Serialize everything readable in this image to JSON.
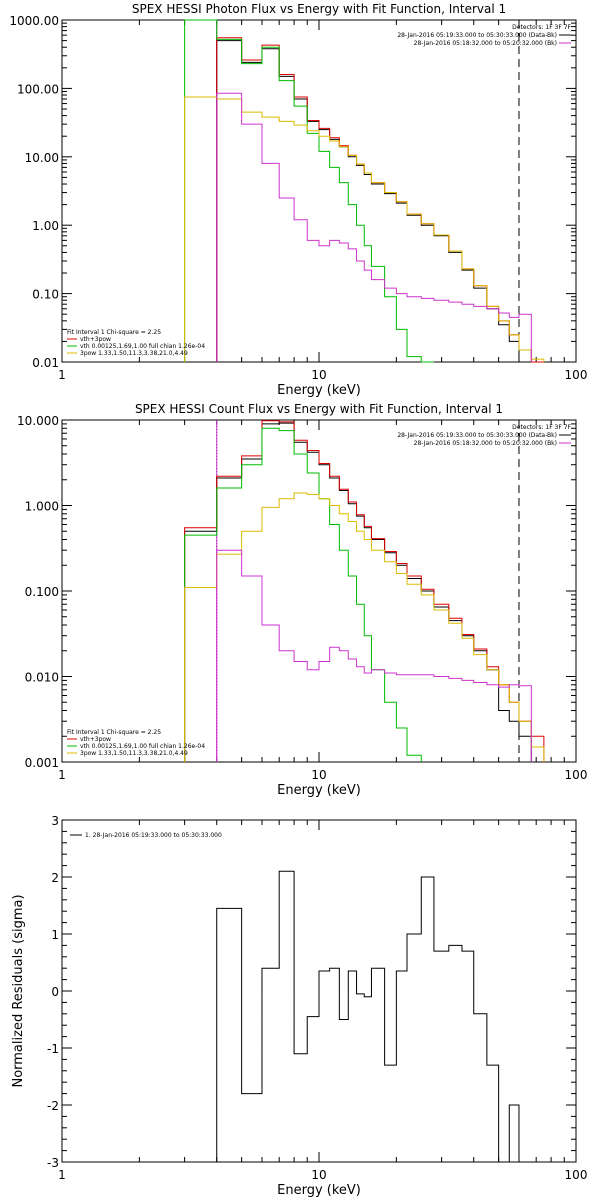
{
  "chart_data": [
    {
      "type": "line",
      "title": "SPEX HESSI Photon Flux vs Energy with Fit Function, Interval 1",
      "xlabel": "Energy (keV)",
      "ylabel": "",
      "xscale": "log",
      "yscale": "log",
      "xlim": [
        1,
        100
      ],
      "ylim": [
        0.01,
        1000
      ],
      "xticks": [
        "1",
        "10",
        "100"
      ],
      "yticks": [
        "0.01",
        "0.10",
        "1.00",
        "10.00",
        "100.00",
        "1000.00"
      ],
      "legend_topright": {
        "title": "Detectors: 1F 3F 7F",
        "entries": [
          {
            "text": "28-Jan-2016 05:19:33.000 to 05:30:33.000 (Data-Bk)",
            "color": "#000000"
          },
          {
            "text": "28-Jan-2016 05:18:32.000 to 05:20:32.000 (Bk)",
            "color": "#cc33cc"
          }
        ]
      },
      "legend_bottomleft": {
        "header": "Fit Interval 1   Chi-square = 2.25",
        "entries": [
          {
            "text": "vth+3pow",
            "color": "#dd0000"
          },
          {
            "text": "vth 0.00125,1.69,1.00  full chian 1.26e-04",
            "color": "#00bb00"
          },
          {
            "text": "3pow 1.33,1.50,11.3,3.38,21.0,4.49",
            "color": "#ddbb00"
          }
        ]
      },
      "vlines": [
        {
          "x": 4.0,
          "style": "dotted",
          "color": "#000000"
        },
        {
          "x": 4.0,
          "style": "solid",
          "color": "#cc33cc"
        },
        {
          "x": 60.0,
          "style": "dashed",
          "color": "#000000"
        }
      ],
      "bin_edges": [
        3.0,
        4.0,
        5.0,
        6.0,
        7.0,
        8.0,
        9.0,
        10.0,
        11.0,
        12.0,
        13.0,
        14.0,
        15.0,
        16.0,
        18.0,
        20.0,
        22.0,
        25.0,
        28.0,
        32.0,
        36.0,
        40.0,
        45.0,
        50.0,
        55.0,
        60.0,
        67.0,
        75.0
      ],
      "series": [
        {
          "name": "data",
          "color": "#000000",
          "values": [
            null,
            500,
            240,
            380,
            150,
            70,
            33,
            25,
            18,
            14,
            10,
            7.5,
            5.5,
            4,
            2.9,
            2.1,
            1.4,
            1,
            0.7,
            0.4,
            0.22,
            0.12,
            0.06,
            0.035,
            0.02,
            null,
            null
          ]
        },
        {
          "name": "vth+3pow",
          "color": "#dd0000",
          "values": [
            null,
            550,
            260,
            430,
            160,
            75,
            34,
            26,
            19,
            14.5,
            10.5,
            7.8,
            5.8,
            4.2,
            3,
            2.2,
            1.45,
            1.05,
            0.72,
            0.42,
            0.23,
            0.13,
            0.065,
            0.04,
            0.025,
            0.015,
            0.01
          ]
        },
        {
          "name": "vth",
          "color": "#00bb00",
          "values": [
            5000,
            520,
            230,
            400,
            130,
            55,
            22,
            12,
            7,
            4.2,
            2,
            1,
            0.5,
            0.25,
            0.09,
            0.03,
            0.012,
            0.004,
            null,
            null,
            null,
            null,
            null,
            null,
            null,
            null,
            null
          ]
        },
        {
          "name": "3pow",
          "color": "#ddbb00",
          "values": [
            75,
            70,
            45,
            38,
            33,
            29,
            24,
            20,
            17,
            14,
            10.5,
            7.8,
            5.8,
            4.2,
            3,
            2.2,
            1.45,
            1.05,
            0.72,
            0.42,
            0.23,
            0.13,
            0.065,
            0.04,
            0.025,
            0.015,
            0.011
          ]
        },
        {
          "name": "bkg",
          "color": "#cc33cc",
          "values": [
            null,
            85,
            30,
            8,
            2.5,
            1.2,
            0.6,
            0.5,
            0.6,
            0.55,
            0.45,
            0.3,
            0.22,
            0.16,
            0.12,
            0.1,
            0.09,
            0.085,
            0.08,
            0.075,
            0.07,
            0.065,
            0.06,
            0.052,
            0.045,
            0.05,
            null
          ]
        }
      ]
    },
    {
      "type": "line",
      "title": "SPEX HESSI Count Flux vs Energy with Fit Function, Interval 1",
      "xlabel": "Energy (keV)",
      "ylabel": "",
      "xscale": "log",
      "yscale": "log",
      "xlim": [
        1,
        100
      ],
      "ylim": [
        0.001,
        10
      ],
      "xticks": [
        "1",
        "10",
        "100"
      ],
      "yticks": [
        "0.001",
        "0.010",
        "0.100",
        "1.000",
        "10.000"
      ],
      "legend_topright": {
        "title": "Detectors: 1F 3F 7F",
        "entries": [
          {
            "text": "28-Jan-2016 05:19:33.000 to 05:30:33.000 (Data-Bk)",
            "color": "#000000"
          },
          {
            "text": "28-Jan-2016 05:18:32.000 to 05:20:32.000 (Bk)",
            "color": "#cc33cc"
          }
        ]
      },
      "legend_bottomleft": {
        "header": "Fit Interval 1   Chi-square = 2.25",
        "entries": [
          {
            "text": "vth+3pow",
            "color": "#dd0000"
          },
          {
            "text": "vth 0.00125,1.69,1.00  full chian 1.26e-04",
            "color": "#00bb00"
          },
          {
            "text": "3pow 1.33,1.50,11.3,3.38,21.0,4.49",
            "color": "#ddbb00"
          }
        ]
      },
      "vlines": [
        {
          "x": 4.0,
          "style": "dotted",
          "color": "#000000"
        },
        {
          "x": 4.0,
          "style": "solid",
          "color": "#cc33cc"
        },
        {
          "x": 60.0,
          "style": "dashed",
          "color": "#000000"
        }
      ],
      "bin_edges": [
        3.0,
        4.0,
        5.0,
        6.0,
        7.0,
        8.0,
        9.0,
        10.0,
        11.0,
        12.0,
        13.0,
        14.0,
        15.0,
        16.0,
        18.0,
        20.0,
        22.0,
        25.0,
        28.0,
        32.0,
        36.0,
        40.0,
        45.0,
        50.0,
        55.0,
        60.0,
        67.0,
        75.0
      ],
      "series": [
        {
          "name": "data",
          "color": "#000000",
          "values": [
            0.5,
            2.1,
            3.5,
            9,
            9.2,
            5.5,
            4.2,
            3,
            2.1,
            1.5,
            1.05,
            0.75,
            0.55,
            0.4,
            0.28,
            0.2,
            0.14,
            0.1,
            0.065,
            0.045,
            0.03,
            0.02,
            0.012,
            0.004,
            0.003,
            0.002,
            null
          ]
        },
        {
          "name": "vth+3pow",
          "color": "#dd0000",
          "values": [
            0.55,
            2.2,
            3.8,
            9.8,
            9.5,
            5.8,
            4.4,
            3.1,
            2.2,
            1.55,
            1.1,
            0.78,
            0.57,
            0.41,
            0.29,
            0.21,
            0.15,
            0.105,
            0.07,
            0.048,
            0.031,
            0.021,
            0.013,
            0.008,
            0.005,
            0.003,
            0.002
          ]
        },
        {
          "name": "vth",
          "color": "#00bb00",
          "values": [
            0.45,
            1.6,
            3,
            8,
            7.5,
            4,
            2.4,
            1.2,
            0.6,
            0.3,
            0.15,
            0.07,
            0.03,
            0.012,
            0.005,
            0.0025,
            0.0012,
            null,
            null,
            null,
            null,
            null,
            null,
            null,
            null,
            null,
            null
          ]
        },
        {
          "name": "3pow",
          "color": "#ddbb00",
          "values": [
            0.11,
            0.27,
            0.5,
            0.95,
            1.2,
            1.4,
            1.35,
            1.2,
            1,
            0.8,
            0.65,
            0.5,
            0.4,
            0.3,
            0.22,
            0.16,
            0.12,
            0.09,
            0.06,
            0.042,
            0.028,
            0.018,
            0.012,
            0.008,
            0.005,
            0.003,
            0.0015
          ]
        },
        {
          "name": "bkg",
          "color": "#cc33cc",
          "values": [
            null,
            0.3,
            0.15,
            0.04,
            0.02,
            0.015,
            0.012,
            0.015,
            0.022,
            0.02,
            0.016,
            0.013,
            0.011,
            0.012,
            0.011,
            0.0105,
            0.0105,
            0.0105,
            0.01,
            0.0095,
            0.009,
            0.0085,
            0.008,
            0.0075,
            0.008,
            0.0078,
            null
          ]
        }
      ]
    },
    {
      "type": "line",
      "title": "",
      "xlabel": "Energy (keV)",
      "ylabel": "Normalized Residuals (sigma)",
      "xscale": "log",
      "yscale": "linear",
      "xlim": [
        1,
        100
      ],
      "ylim": [
        -3,
        3
      ],
      "xticks": [
        "1",
        "10",
        "100"
      ],
      "yticks": [
        "-3",
        "-2",
        "-1",
        "0",
        "1",
        "2",
        "3"
      ],
      "legend_topleft": {
        "entries": [
          {
            "text": "1. 28-Jan-2016 05:19:33.000 to 05:30:33.000",
            "color": "#000000"
          }
        ]
      },
      "bin_edges": [
        4.0,
        5.0,
        6.0,
        7.0,
        8.0,
        9.0,
        10.0,
        11.0,
        12.0,
        13.0,
        14.0,
        15.0,
        16.0,
        18.0,
        20.0,
        22.0,
        25.0,
        28.0,
        32.0,
        36.0,
        40.0,
        45.0,
        50.0,
        55.0,
        60.0
      ],
      "series": [
        {
          "name": "residuals",
          "color": "#000000",
          "values": [
            1.45,
            -1.8,
            0.4,
            2.1,
            -1.1,
            -0.45,
            0.35,
            0.4,
            -0.5,
            0.35,
            -0.05,
            -0.1,
            0.4,
            -1.3,
            0.35,
            1.0,
            2.0,
            0.7,
            0.8,
            0.7,
            -0.4,
            -1.3,
            -3.1,
            -2.0
          ]
        }
      ]
    }
  ]
}
